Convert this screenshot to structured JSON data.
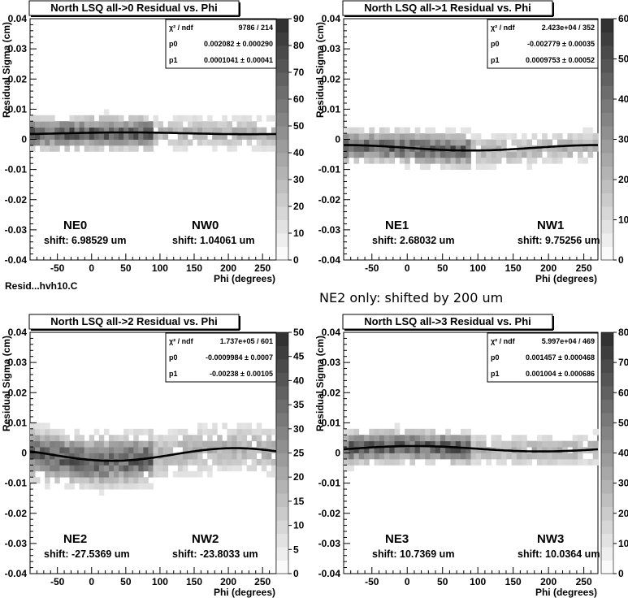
{
  "canvas_label": "Resid...hvh10.C",
  "note": "NE2 only: shifted by 200 um",
  "chart_data": [
    {
      "type": "heatmap",
      "title": "North LSQ all->0 Residual vs. Phi",
      "xlabel": "Phi (degrees)",
      "ylabel": "Residual Sigma (cm)",
      "xlim": [
        -90,
        270
      ],
      "ylim": [
        -0.04,
        0.04
      ],
      "xticks": [
        "-50",
        "0",
        "50",
        "100",
        "150",
        "200",
        "250"
      ],
      "yticks": [
        "-0.04",
        "-0.03",
        "-0.02",
        "-0.01",
        "0",
        "0.01",
        "0.02",
        "0.03",
        "0.04"
      ],
      "zlim": [
        0,
        90
      ],
      "zticks": [
        "0",
        "10",
        "20",
        "30",
        "40",
        "50",
        "60",
        "70",
        "80",
        "90"
      ],
      "stats": [
        {
          "label": "χ² / ndf",
          "value": "9786 / 214"
        },
        {
          "label": "p0",
          "value": "0.002082 ± 0.000290"
        },
        {
          "label": "p1",
          "value": "0.0001041 ± 0.00041"
        }
      ],
      "fit": {
        "p0": 0.002082,
        "p1": 0.0001041
      },
      "band_center": 0.002,
      "left_label": "NE0",
      "right_label": "NW0",
      "left_shift": "shift: 6.98529 um",
      "right_shift": "shift: 1.04061 um"
    },
    {
      "type": "heatmap",
      "title": "North LSQ all->1 Residual vs. Phi",
      "xlabel": "Phi (degrees)",
      "ylabel": "Residual Sigma (cm)",
      "xlim": [
        -90,
        270
      ],
      "ylim": [
        -0.04,
        0.04
      ],
      "xticks": [
        "-50",
        "0",
        "50",
        "100",
        "150",
        "200",
        "250"
      ],
      "yticks": [
        "-0.04",
        "-0.03",
        "-0.02",
        "-0.01",
        "0",
        "0.01",
        "0.02",
        "0.03",
        "0.04"
      ],
      "zlim": [
        0,
        60
      ],
      "zticks": [
        "0",
        "10",
        "20",
        "30",
        "40",
        "50",
        "60"
      ],
      "stats": [
        {
          "label": "χ² / ndf",
          "value": "2.423e+04 / 352"
        },
        {
          "label": "p0",
          "value": "-0.002779 ± 0.00035"
        },
        {
          "label": "p1",
          "value": "0.0009753 ± 0.00052"
        }
      ],
      "fit": {
        "p0": -0.002779,
        "p1": 0.0009753
      },
      "band_center": -0.003,
      "left_label": "NE1",
      "right_label": "NW1",
      "left_shift": "shift: 2.68032 um",
      "right_shift": "shift: 9.75256 um"
    },
    {
      "type": "heatmap",
      "title": "North LSQ all->2 Residual vs. Phi",
      "xlabel": "Phi (degrees)",
      "ylabel": "Residual Sigma (cm)",
      "xlim": [
        -90,
        270
      ],
      "ylim": [
        -0.04,
        0.04
      ],
      "xticks": [
        "-50",
        "0",
        "50",
        "100",
        "150",
        "200",
        "250"
      ],
      "yticks": [
        "-0.04",
        "-0.03",
        "-0.02",
        "-0.01",
        "0",
        "0.01",
        "0.02",
        "0.03",
        "0.04"
      ],
      "zlim": [
        0,
        50
      ],
      "zticks": [
        "0",
        "5",
        "10",
        "15",
        "20",
        "25",
        "30",
        "35",
        "40",
        "45",
        "50"
      ],
      "stats": [
        {
          "label": "χ² / ndf",
          "value": "1.737e+05 / 601"
        },
        {
          "label": "p0",
          "value": "-0.0009984 ± 0.0007"
        },
        {
          "label": "p1",
          "value": "-0.00238 ± 0.00105"
        }
      ],
      "fit": {
        "p0": -0.0009984,
        "p1": -0.00238
      },
      "band_center": -0.002,
      "left_label": "NE2",
      "right_label": "NW2",
      "left_shift": "shift: -27.5369 um",
      "right_shift": "shift: -23.8033 um"
    },
    {
      "type": "heatmap",
      "title": "North LSQ all->3 Residual vs. Phi",
      "xlabel": "Phi (degrees)",
      "ylabel": "Residual Sigma (cm)",
      "xlim": [
        -90,
        270
      ],
      "ylim": [
        -0.04,
        0.04
      ],
      "xticks": [
        "-50",
        "0",
        "50",
        "100",
        "150",
        "200",
        "250"
      ],
      "yticks": [
        "-0.04",
        "-0.03",
        "-0.02",
        "-0.01",
        "0",
        "0.01",
        "0.02",
        "0.03",
        "0.04"
      ],
      "zlim": [
        0,
        80
      ],
      "zticks": [
        "0",
        "10",
        "20",
        "30",
        "40",
        "50",
        "60",
        "70",
        "80"
      ],
      "stats": [
        {
          "label": "χ² / ndf",
          "value": "5.997e+04 / 469"
        },
        {
          "label": "p0",
          "value": "0.001457 ± 0.000468"
        },
        {
          "label": "p1",
          "value": "0.001004 ± 0.000686"
        }
      ],
      "fit": {
        "p0": 0.001457,
        "p1": 0.001004
      },
      "band_center": 0.0015,
      "left_label": "NE3",
      "right_label": "NW3",
      "left_shift": "shift: 10.7369 um",
      "right_shift": "shift: 10.0364 um"
    }
  ]
}
